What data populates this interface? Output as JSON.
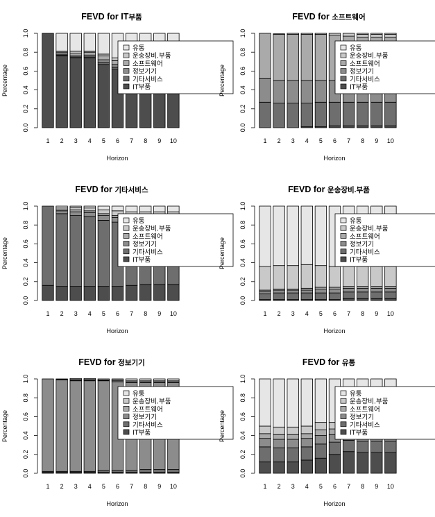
{
  "chart_data": [
    {
      "type": "bar",
      "stacked": true,
      "title_main": "FEVD for IT",
      "title_sub": "부품",
      "xlabel": "Horizon",
      "ylabel": "Percentage",
      "ylim": [
        0,
        1
      ],
      "yticks": [
        "0.0",
        "0.2",
        "0.4",
        "0.6",
        "0.8",
        "1.0"
      ],
      "categories": [
        "1",
        "2",
        "3",
        "4",
        "5",
        "6",
        "7",
        "8",
        "9",
        "10"
      ],
      "legend": [
        "유통",
        "운송장비.부품",
        "소프트웨어",
        "정보기기",
        "기타서비스",
        "IT부품"
      ],
      "series": [
        {
          "name": "IT부품",
          "color": "#4d4d4d",
          "values": [
            1.0,
            0.76,
            0.74,
            0.74,
            0.67,
            0.62,
            0.61,
            0.6,
            0.6,
            0.6
          ]
        },
        {
          "name": "기타서비스",
          "color": "#6e6e6e",
          "values": [
            0,
            0.01,
            0.01,
            0.01,
            0.02,
            0.02,
            0.02,
            0.02,
            0.02,
            0.02
          ]
        },
        {
          "name": "정보기기",
          "color": "#8c8c8c",
          "values": [
            0,
            0.01,
            0.01,
            0.02,
            0.03,
            0.03,
            0.03,
            0.03,
            0.03,
            0.03
          ]
        },
        {
          "name": "소프트웨어",
          "color": "#aaaaaa",
          "values": [
            0,
            0.02,
            0.03,
            0.03,
            0.04,
            0.04,
            0.04,
            0.04,
            0.04,
            0.04
          ]
        },
        {
          "name": "운송장비.부품",
          "color": "#c9c9c9",
          "values": [
            0,
            0.01,
            0.02,
            0.01,
            0.02,
            0.03,
            0.03,
            0.03,
            0.03,
            0.03
          ]
        },
        {
          "name": "유통",
          "color": "#e6e6e6",
          "values": [
            0,
            0.19,
            0.19,
            0.19,
            0.22,
            0.26,
            0.27,
            0.28,
            0.28,
            0.28
          ]
        }
      ]
    },
    {
      "type": "bar",
      "stacked": true,
      "title_main": "FEVD for ",
      "title_sub": "소프트웨어",
      "xlabel": "Horizon",
      "ylabel": "Percentage",
      "ylim": [
        0,
        1
      ],
      "yticks": [
        "0.0",
        "0.2",
        "0.4",
        "0.6",
        "0.8",
        "1.0"
      ],
      "categories": [
        "1",
        "2",
        "3",
        "4",
        "5",
        "6",
        "7",
        "8",
        "9",
        "10"
      ],
      "legend": [
        "유통",
        "운송장비.부품",
        "소프트웨어",
        "정보기기",
        "기타서비스",
        "IT부품"
      ],
      "series": [
        {
          "name": "IT부품",
          "color": "#4d4d4d",
          "values": [
            0,
            0,
            0,
            0.01,
            0.01,
            0.02,
            0.02,
            0.02,
            0.02,
            0.02
          ]
        },
        {
          "name": "기타서비스",
          "color": "#6e6e6e",
          "values": [
            0.27,
            0.26,
            0.26,
            0.25,
            0.26,
            0.25,
            0.25,
            0.25,
            0.25,
            0.25
          ]
        },
        {
          "name": "정보기기",
          "color": "#8c8c8c",
          "values": [
            0.25,
            0.24,
            0.24,
            0.24,
            0.23,
            0.23,
            0.23,
            0.23,
            0.23,
            0.23
          ]
        },
        {
          "name": "소프트웨어",
          "color": "#aaaaaa",
          "values": [
            0.48,
            0.49,
            0.49,
            0.49,
            0.49,
            0.48,
            0.47,
            0.46,
            0.46,
            0.46
          ]
        },
        {
          "name": "운송장비.부품",
          "color": "#c9c9c9",
          "values": [
            0,
            0.005,
            0.01,
            0.01,
            0.01,
            0.02,
            0.03,
            0.03,
            0.03,
            0.03
          ]
        },
        {
          "name": "유통",
          "color": "#e6e6e6",
          "values": [
            0,
            0,
            0,
            0,
            0,
            0,
            0,
            0.01,
            0.01,
            0.01
          ]
        }
      ]
    },
    {
      "type": "bar",
      "stacked": true,
      "title_main": "FEVD for ",
      "title_sub": "기타서비스",
      "xlabel": "Horizon",
      "ylabel": "Percentage",
      "ylim": [
        0,
        1
      ],
      "yticks": [
        "0.0",
        "0.2",
        "0.4",
        "0.6",
        "0.8",
        "1.0"
      ],
      "categories": [
        "1",
        "2",
        "3",
        "4",
        "5",
        "6",
        "7",
        "8",
        "9",
        "10"
      ],
      "legend": [
        "유통",
        "운송장비.부품",
        "소프트웨어",
        "정보기기",
        "기타서비스",
        "IT부품"
      ],
      "series": [
        {
          "name": "IT부품",
          "color": "#4d4d4d",
          "values": [
            0.16,
            0.15,
            0.15,
            0.15,
            0.15,
            0.15,
            0.16,
            0.17,
            0.17,
            0.17
          ]
        },
        {
          "name": "기타서비스",
          "color": "#6e6e6e",
          "values": [
            0.84,
            0.77,
            0.75,
            0.74,
            0.7,
            0.68,
            0.66,
            0.64,
            0.64,
            0.64
          ]
        },
        {
          "name": "정보기기",
          "color": "#8c8c8c",
          "values": [
            0,
            0.03,
            0.04,
            0.04,
            0.05,
            0.05,
            0.05,
            0.05,
            0.05,
            0.05
          ]
        },
        {
          "name": "소프트웨어",
          "color": "#aaaaaa",
          "values": [
            0,
            0.01,
            0.02,
            0.02,
            0.02,
            0.02,
            0.02,
            0.02,
            0.02,
            0.02
          ]
        },
        {
          "name": "운송장비.부품",
          "color": "#c9c9c9",
          "values": [
            0,
            0.02,
            0.03,
            0.03,
            0.04,
            0.05,
            0.05,
            0.06,
            0.06,
            0.06
          ]
        },
        {
          "name": "유통",
          "color": "#e6e6e6",
          "values": [
            0,
            0.02,
            0.01,
            0.02,
            0.04,
            0.05,
            0.06,
            0.06,
            0.06,
            0.06
          ]
        }
      ]
    },
    {
      "type": "bar",
      "stacked": true,
      "title_main": "FEVD for ",
      "title_sub": "운송장비.부품",
      "xlabel": "Horizon",
      "ylabel": "Percentage",
      "ylim": [
        0,
        1
      ],
      "yticks": [
        "0.0",
        "0.2",
        "0.4",
        "0.6",
        "0.8",
        "1.0"
      ],
      "categories": [
        "1",
        "2",
        "3",
        "4",
        "5",
        "6",
        "7",
        "8",
        "9",
        "10"
      ],
      "legend": [
        "유통",
        "운송장비.부품",
        "소프트웨어",
        "정보기기",
        "기타서비스",
        "IT부품"
      ],
      "series": [
        {
          "name": "IT부품",
          "color": "#4d4d4d",
          "values": [
            0.01,
            0.01,
            0.01,
            0.01,
            0.01,
            0.01,
            0.02,
            0.02,
            0.02,
            0.02
          ]
        },
        {
          "name": "기타서비스",
          "color": "#6e6e6e",
          "values": [
            0.06,
            0.07,
            0.07,
            0.07,
            0.07,
            0.07,
            0.07,
            0.07,
            0.07,
            0.07
          ]
        },
        {
          "name": "정보기기",
          "color": "#8c8c8c",
          "values": [
            0.03,
            0.03,
            0.03,
            0.03,
            0.04,
            0.04,
            0.04,
            0.04,
            0.04,
            0.04
          ]
        },
        {
          "name": "소프트웨어",
          "color": "#aaaaaa",
          "values": [
            0.01,
            0.01,
            0.01,
            0.02,
            0.02,
            0.02,
            0.02,
            0.02,
            0.02,
            0.02
          ]
        },
        {
          "name": "운송장비.부품",
          "color": "#c9c9c9",
          "values": [
            0.25,
            0.25,
            0.25,
            0.25,
            0.23,
            0.22,
            0.21,
            0.21,
            0.21,
            0.21
          ]
        },
        {
          "name": "유통",
          "color": "#e6e6e6",
          "values": [
            0.64,
            0.63,
            0.63,
            0.62,
            0.63,
            0.64,
            0.64,
            0.64,
            0.64,
            0.64
          ]
        }
      ]
    },
    {
      "type": "bar",
      "stacked": true,
      "title_main": "FEVD for ",
      "title_sub": "정보기기",
      "xlabel": "Horizon",
      "ylabel": "Percentage",
      "ylim": [
        0,
        1
      ],
      "yticks": [
        "0.0",
        "0.2",
        "0.4",
        "0.6",
        "0.8",
        "1.0"
      ],
      "categories": [
        "1",
        "2",
        "3",
        "4",
        "5",
        "6",
        "7",
        "8",
        "9",
        "10"
      ],
      "legend": [
        "유통",
        "운송장비.부품",
        "소프트웨어",
        "정보기기",
        "기타서비스",
        "IT부품"
      ],
      "series": [
        {
          "name": "IT부품",
          "color": "#4d4d4d",
          "values": [
            0.01,
            0.01,
            0.01,
            0.01,
            0.01,
            0.01,
            0.01,
            0.01,
            0.01,
            0.01
          ]
        },
        {
          "name": "기타서비스",
          "color": "#6e6e6e",
          "values": [
            0.01,
            0.01,
            0.01,
            0.01,
            0.02,
            0.02,
            0.02,
            0.03,
            0.03,
            0.03
          ]
        },
        {
          "name": "정보기기",
          "color": "#8c8c8c",
          "values": [
            0.98,
            0.97,
            0.96,
            0.96,
            0.95,
            0.94,
            0.93,
            0.92,
            0.92,
            0.92
          ]
        },
        {
          "name": "소프트웨어",
          "color": "#aaaaaa",
          "values": [
            0,
            0.005,
            0.005,
            0.005,
            0.005,
            0.01,
            0.01,
            0.01,
            0.01,
            0.01
          ]
        },
        {
          "name": "운송장비.부품",
          "color": "#c9c9c9",
          "values": [
            0,
            0.005,
            0.01,
            0.01,
            0.005,
            0.01,
            0.01,
            0.01,
            0.01,
            0.01
          ]
        },
        {
          "name": "유통",
          "color": "#e6e6e6",
          "values": [
            0,
            0,
            0.01,
            0.01,
            0.01,
            0.01,
            0.02,
            0.02,
            0.02,
            0.02
          ]
        }
      ]
    },
    {
      "type": "bar",
      "stacked": true,
      "title_main": "FEVD for ",
      "title_sub": "유통",
      "xlabel": "Horizon",
      "ylabel": "Percentage",
      "ylim": [
        0,
        1
      ],
      "yticks": [
        "0.0",
        "0.2",
        "0.4",
        "0.6",
        "0.8",
        "1.0"
      ],
      "categories": [
        "1",
        "2",
        "3",
        "4",
        "5",
        "6",
        "7",
        "8",
        "9",
        "10"
      ],
      "legend": [
        "유통",
        "운송장비.부품",
        "소프트웨어",
        "정보기기",
        "기타서비스",
        "IT부품"
      ],
      "series": [
        {
          "name": "IT부품",
          "color": "#4d4d4d",
          "values": [
            0.12,
            0.12,
            0.12,
            0.14,
            0.16,
            0.2,
            0.23,
            0.22,
            0.22,
            0.22
          ]
        },
        {
          "name": "기타서비스",
          "color": "#6e6e6e",
          "values": [
            0.16,
            0.15,
            0.15,
            0.14,
            0.15,
            0.13,
            0.12,
            0.12,
            0.12,
            0.12
          ]
        },
        {
          "name": "정보기기",
          "color": "#8c8c8c",
          "values": [
            0.09,
            0.09,
            0.09,
            0.09,
            0.09,
            0.08,
            0.08,
            0.08,
            0.08,
            0.08
          ]
        },
        {
          "name": "소프트웨어",
          "color": "#aaaaaa",
          "values": [
            0.05,
            0.05,
            0.05,
            0.05,
            0.06,
            0.06,
            0.06,
            0.06,
            0.06,
            0.06
          ]
        },
        {
          "name": "운송장비.부품",
          "color": "#c9c9c9",
          "values": [
            0.08,
            0.08,
            0.08,
            0.08,
            0.08,
            0.07,
            0.07,
            0.07,
            0.07,
            0.07
          ]
        },
        {
          "name": "유통",
          "color": "#e6e6e6",
          "values": [
            0.5,
            0.51,
            0.51,
            0.5,
            0.46,
            0.46,
            0.44,
            0.45,
            0.45,
            0.45
          ]
        }
      ]
    }
  ]
}
